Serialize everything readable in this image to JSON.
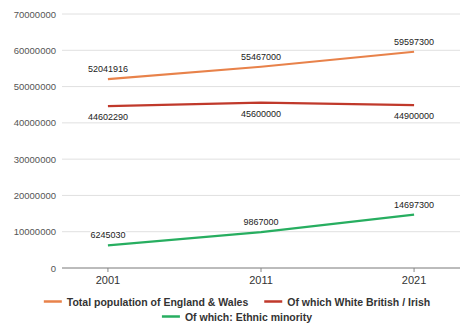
{
  "chart_data": {
    "type": "line",
    "x": [
      2001,
      2011,
      2021
    ],
    "series": [
      {
        "name": "Total population of England & Wales",
        "color": "#E8824A",
        "values": [
          52041916,
          55467000,
          59597300
        ]
      },
      {
        "name": "Of which White British / Irish",
        "color": "#C0392B",
        "values": [
          44602290,
          45600000,
          44900000
        ]
      },
      {
        "name": "Of which: Ethnic minority",
        "color": "#27AE60",
        "values": [
          6245030,
          9867000,
          14697300
        ]
      }
    ],
    "xlim": [
      1998,
      2024
    ],
    "xticks": [
      2001,
      2011,
      2021
    ],
    "ylim": [
      0,
      70000000
    ],
    "yticks": [
      0,
      10000000,
      20000000,
      30000000,
      40000000,
      50000000,
      60000000,
      70000000
    ],
    "grid": true,
    "legend": "bottom",
    "data_labels": true
  }
}
